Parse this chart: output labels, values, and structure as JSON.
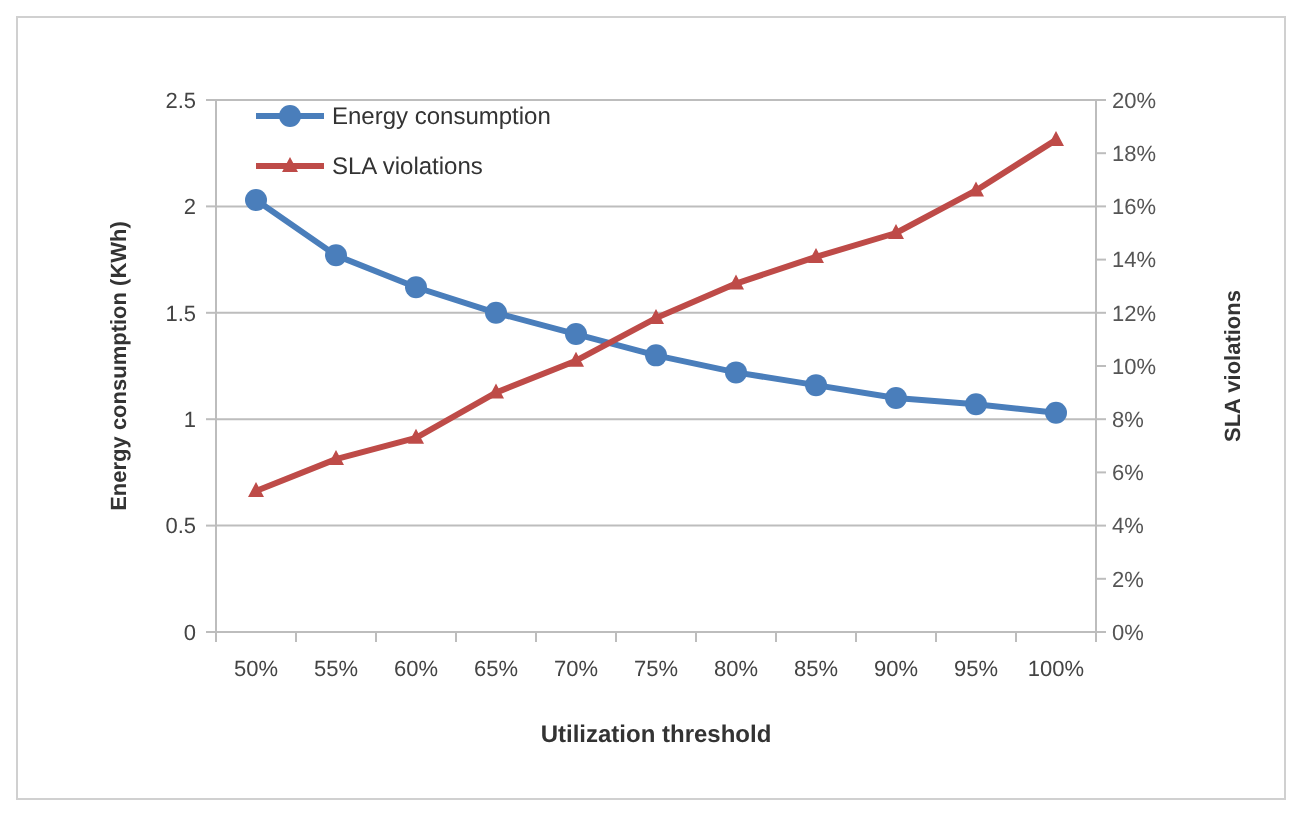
{
  "chart_data": {
    "type": "line",
    "xlabel": "Utilization threshold",
    "ylabel": "Energy consumption (KWh)",
    "y2label": "SLA violations",
    "categories": [
      "50%",
      "55%",
      "60%",
      "65%",
      "70%",
      "75%",
      "80%",
      "85%",
      "90%",
      "95%",
      "100%"
    ],
    "series": [
      {
        "name": "Energy consumption",
        "color": "#4a7ebb",
        "marker": "circle",
        "values": [
          2.03,
          1.77,
          1.62,
          1.5,
          1.4,
          1.3,
          1.22,
          1.16,
          1.1,
          1.07,
          1.03
        ]
      },
      {
        "name": "SLA violations",
        "color": "#be4b48",
        "marker": "triangle",
        "axis": "y2",
        "values": [
          5.3,
          6.5,
          7.3,
          9.0,
          10.2,
          11.8,
          13.1,
          14.1,
          15.0,
          16.6,
          18.5
        ]
      }
    ],
    "ylim": [
      0,
      2.5
    ],
    "yticks": [
      0,
      0.5,
      1,
      1.5,
      2,
      2.5
    ],
    "y2lim": [
      0,
      20
    ],
    "y2ticks": [
      {
        "value": 0,
        "label": "0%"
      },
      {
        "value": 2,
        "label": "2%"
      },
      {
        "value": 4,
        "label": "4%"
      },
      {
        "value": 6,
        "label": "6%"
      },
      {
        "value": 8,
        "label": "8%"
      },
      {
        "value": 10,
        "label": "10%"
      },
      {
        "value": 12,
        "label": "12%"
      },
      {
        "value": 14,
        "label": "14%"
      },
      {
        "value": 16,
        "label": "16%"
      },
      {
        "value": 18,
        "label": "18%"
      },
      {
        "value": 20,
        "label": "20%"
      }
    ],
    "grid": "y",
    "legend": "top left",
    "line_style": "solid"
  }
}
